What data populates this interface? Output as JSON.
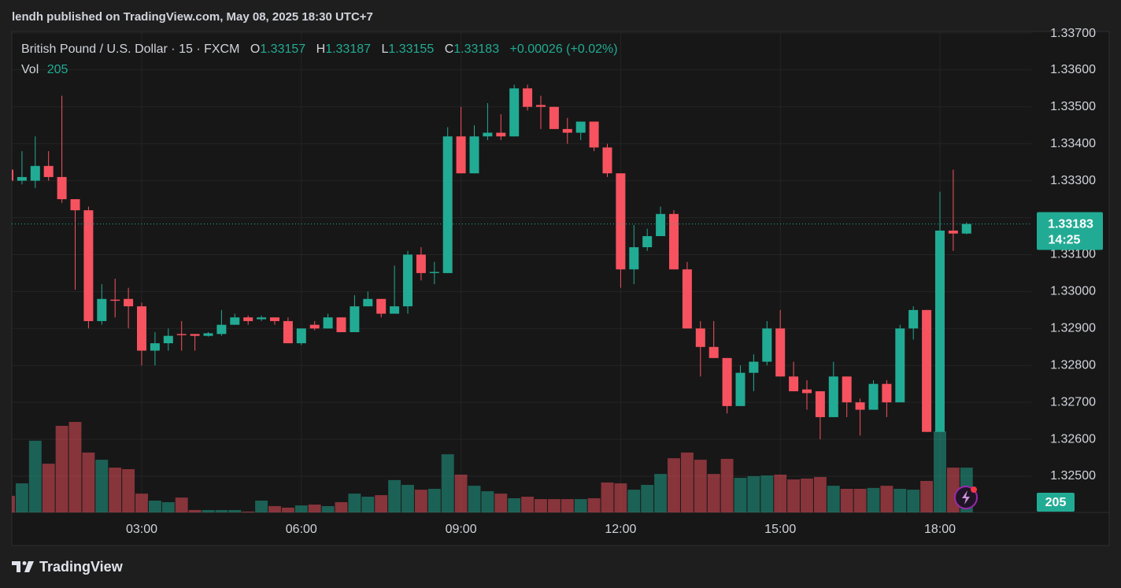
{
  "header": "lendh published on TradingView.com, May 08, 2025 18:30 UTC+7",
  "brand": "TradingView",
  "legend": {
    "symbol": "British Pound / U.S. Dollar · 15 · FXCM",
    "ohlc_labels": [
      "O",
      "H",
      "L",
      "C"
    ],
    "change": "+0.00026 (+0.02%)",
    "volume_label": "Vol",
    "countdown": "14:25"
  },
  "chart_data": {
    "type": "candlestick",
    "x": [
      "00:30",
      "00:45",
      "01:00",
      "01:15",
      "01:30",
      "01:45",
      "02:00",
      "02:15",
      "02:30",
      "02:45",
      "03:00",
      "03:15",
      "03:30",
      "03:45",
      "04:00",
      "04:15",
      "04:30",
      "04:45",
      "05:00",
      "05:15",
      "05:30",
      "05:45",
      "06:00",
      "06:15",
      "06:30",
      "06:45",
      "07:00",
      "07:15",
      "07:30",
      "07:45",
      "08:00",
      "08:15",
      "08:30",
      "08:45",
      "09:00",
      "09:15",
      "09:30",
      "09:45",
      "10:00",
      "10:15",
      "10:30",
      "10:45",
      "11:00",
      "11:15",
      "11:30",
      "11:45",
      "12:00",
      "12:15",
      "12:30",
      "12:45",
      "13:00",
      "13:15",
      "13:30",
      "13:45",
      "14:00",
      "14:15",
      "14:30",
      "14:45",
      "15:00",
      "15:15",
      "15:30",
      "15:45",
      "16:00",
      "16:15",
      "16:30",
      "16:45",
      "17:00",
      "17:15",
      "17:30",
      "17:45",
      "18:00",
      "18:15",
      "18:30"
    ],
    "open": [
      1.3333,
      1.333,
      1.333,
      1.3334,
      1.3331,
      1.3325,
      1.3322,
      1.3292,
      1.32978,
      1.3298,
      1.3296,
      1.3284,
      1.3286,
      1.32885,
      1.32885,
      1.3288,
      1.32885,
      1.3291,
      1.3293,
      1.32925,
      1.3293,
      1.3292,
      1.3286,
      1.3291,
      1.329,
      1.3293,
      1.3289,
      1.3296,
      1.3298,
      1.3294,
      1.3296,
      1.331,
      1.3305,
      1.3305,
      1.3342,
      1.3332,
      1.3342,
      1.3343,
      1.3342,
      1.3355,
      1.33505,
      1.335,
      1.3344,
      1.3343,
      1.3346,
      1.3339,
      1.3332,
      1.3306,
      1.3312,
      1.3315,
      1.3321,
      1.3306,
      1.329,
      1.3285,
      1.3282,
      1.3269,
      1.3278,
      1.3281,
      1.329,
      1.3277,
      1.32735,
      1.3273,
      1.3266,
      1.3277,
      1.327,
      1.3268,
      1.3275,
      1.327,
      1.329,
      1.3295,
      1.3262,
      1.33165,
      1.33157
    ],
    "high": [
      1.3333,
      1.3338,
      1.3342,
      1.3338,
      1.3353,
      1.3325,
      1.3323,
      1.3302,
      1.33035,
      1.3301,
      1.3297,
      1.3289,
      1.329,
      1.3292,
      1.32885,
      1.3289,
      1.3295,
      1.3294,
      1.32935,
      1.32935,
      1.3293,
      1.3293,
      1.329,
      1.3292,
      1.3294,
      1.3293,
      1.3299,
      1.33,
      1.3298,
      1.3307,
      1.3311,
      1.3312,
      1.3308,
      1.33445,
      1.335,
      1.3345,
      1.3351,
      1.3348,
      1.3356,
      1.3356,
      1.3353,
      1.335,
      1.3347,
      1.3346,
      1.3346,
      1.334,
      1.3332,
      1.3318,
      1.3317,
      1.3323,
      1.3322,
      1.3308,
      1.3292,
      1.3292,
      1.3282,
      1.328,
      1.3283,
      1.3292,
      1.3295,
      1.3281,
      1.3276,
      1.3273,
      1.3281,
      1.3277,
      1.3271,
      1.3276,
      1.3276,
      1.3291,
      1.3296,
      1.3295,
      1.3327,
      1.3333,
      1.33187
    ],
    "low": [
      1.333,
      1.3329,
      1.3328,
      1.333,
      1.3324,
      1.33005,
      1.329,
      1.3291,
      1.3293,
      1.329,
      1.328,
      1.328,
      1.3284,
      1.3284,
      1.3284,
      1.32878,
      1.3288,
      1.3291,
      1.3291,
      1.3292,
      1.3291,
      1.3286,
      1.32855,
      1.32895,
      1.329,
      1.3289,
      1.3289,
      1.3296,
      1.3293,
      1.3294,
      1.3294,
      1.3303,
      1.3302,
      1.3305,
      1.3332,
      1.3332,
      1.3341,
      1.3341,
      1.3342,
      1.3349,
      1.3344,
      1.3344,
      1.334,
      1.3341,
      1.3338,
      1.3331,
      1.3301,
      1.3302,
      1.3311,
      1.3315,
      1.3306,
      1.329,
      1.3277,
      1.3282,
      1.3267,
      1.3269,
      1.3273,
      1.328,
      1.3277,
      1.3273,
      1.3268,
      1.326,
      1.3266,
      1.3266,
      1.3261,
      1.3268,
      1.3266,
      1.327,
      1.3287,
      1.3262,
      1.3262,
      1.3311,
      1.33155
    ],
    "close": [
      1.333,
      1.3331,
      1.3334,
      1.3331,
      1.3325,
      1.3322,
      1.3292,
      1.3298,
      1.32975,
      1.3296,
      1.3284,
      1.3286,
      1.3288,
      1.32882,
      1.3288,
      1.32887,
      1.3291,
      1.3293,
      1.3292,
      1.3293,
      1.3292,
      1.3286,
      1.329,
      1.329,
      1.3293,
      1.3289,
      1.3296,
      1.3298,
      1.3294,
      1.3296,
      1.331,
      1.3305,
      1.33053,
      1.3342,
      1.3332,
      1.3342,
      1.3343,
      1.3342,
      1.3355,
      1.335,
      1.335,
      1.3344,
      1.3343,
      1.3346,
      1.3339,
      1.3332,
      1.3306,
      1.3312,
      1.3315,
      1.3321,
      1.3306,
      1.329,
      1.3285,
      1.3282,
      1.3269,
      1.3278,
      1.3281,
      1.329,
      1.3277,
      1.3273,
      1.32725,
      1.3266,
      1.3277,
      1.327,
      1.3268,
      1.3275,
      1.327,
      1.329,
      1.3295,
      1.3262,
      1.33165,
      1.33157,
      1.33183
    ],
    "volume": [
      76,
      133,
      328,
      223,
      396,
      414,
      274,
      241,
      205,
      198,
      86,
      54,
      47,
      68,
      11,
      11,
      11,
      11,
      4,
      54,
      29,
      22,
      32,
      36,
      29,
      47,
      86,
      72,
      79,
      148,
      126,
      104,
      108,
      266,
      173,
      122,
      97,
      86,
      65,
      72,
      61,
      61,
      61,
      61,
      65,
      137,
      133,
      104,
      126,
      176,
      248,
      274,
      241,
      176,
      245,
      158,
      166,
      169,
      173,
      151,
      155,
      162,
      122,
      108,
      108,
      112,
      122,
      108,
      104,
      144,
      371,
      205,
      205
    ],
    "up_color": "#22ab94",
    "down_color": "#f7525f",
    "ylim": [
      1.32402,
      1.33704
    ],
    "yticks": [
      {
        "value": 1.337,
        "label": "1.33700"
      },
      {
        "value": 1.336,
        "label": "1.33600"
      },
      {
        "value": 1.335,
        "label": "1.33500"
      },
      {
        "value": 1.334,
        "label": "1.33400"
      },
      {
        "value": 1.333,
        "label": "1.33300"
      },
      {
        "value": 1.332,
        "label": "1.33200"
      },
      {
        "value": 1.331,
        "label": "1.33100"
      },
      {
        "value": 1.33,
        "label": "1.33000"
      },
      {
        "value": 1.329,
        "label": "1.32900"
      },
      {
        "value": 1.328,
        "label": "1.32800"
      },
      {
        "value": 1.327,
        "label": "1.32700"
      },
      {
        "value": 1.326,
        "label": "1.32600"
      },
      {
        "value": 1.325,
        "label": "1.32500"
      }
    ],
    "xticks": [
      "03:00",
      "06:00",
      "09:00",
      "12:00",
      "15:00",
      "18:00"
    ],
    "grid": true
  }
}
